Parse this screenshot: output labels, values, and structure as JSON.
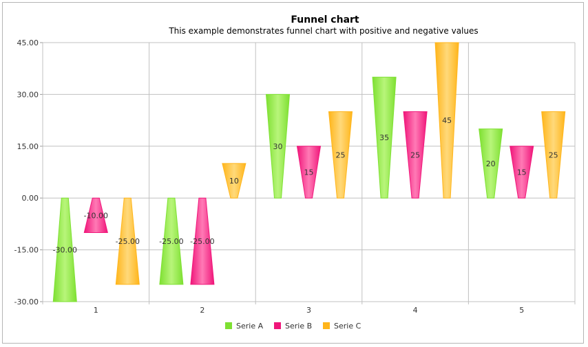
{
  "chart_data": {
    "type": "funnel-bar",
    "title": "Funnel chart",
    "subtitle": "This example demonstrates funnel chart with positive and negative values",
    "categories": [
      "1",
      "2",
      "3",
      "4",
      "5"
    ],
    "ylim": [
      -30,
      45
    ],
    "yticks": [
      45,
      30,
      15,
      0,
      -15,
      -30
    ],
    "ytick_labels": [
      "45.00",
      "30.00",
      "15.00",
      "0.00",
      "-15.00",
      "-30.00"
    ],
    "grid": true,
    "legend": "bottom",
    "series": [
      {
        "name": "Serie A",
        "color": "#7ee032",
        "light": "#b8f57a",
        "values": [
          -30,
          -25,
          30,
          35,
          20
        ],
        "labels": [
          "-30.00",
          "-25.00",
          "30",
          "35",
          "20"
        ]
      },
      {
        "name": "Serie B",
        "color": "#f0167a",
        "light": "#ff7ab5",
        "values": [
          -10,
          -25,
          15,
          25,
          15
        ],
        "labels": [
          "-10.00",
          "-25.00",
          "15",
          "25",
          "15"
        ]
      },
      {
        "name": "Serie C",
        "color": "#ffb51b",
        "light": "#ffd97a",
        "values": [
          -25,
          10,
          25,
          45,
          25
        ],
        "labels": [
          "-25.00",
          "10",
          "25",
          "45",
          "25"
        ]
      }
    ]
  }
}
